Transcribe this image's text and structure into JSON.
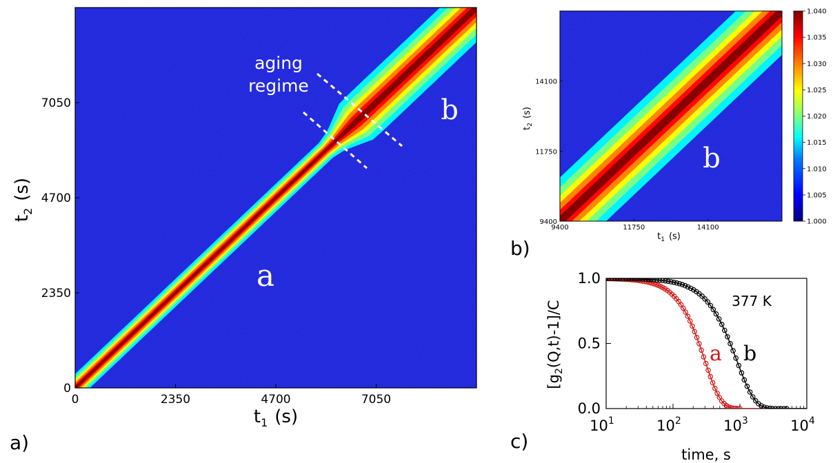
{
  "panel_labels": {
    "a": "a)",
    "b": "b)",
    "c": "c)"
  },
  "chart_data": [
    {
      "id": "panel_a",
      "type": "heatmap",
      "title": "",
      "xlabel": "t",
      "xlabel_sub": "1",
      "xlabel_unit": "(s)",
      "ylabel": "t",
      "ylabel_sub": "2",
      "ylabel_unit": "(s)",
      "xlim": [
        0,
        9400
      ],
      "ylim": [
        0,
        9400
      ],
      "xticks": [
        "0",
        "2350",
        "4700",
        "7050"
      ],
      "yticks": [
        "0",
        "2350",
        "4700",
        "7050"
      ],
      "tick_values": [
        0,
        2350,
        4700,
        7050
      ],
      "diagonal_width_start": 170,
      "diagonal_width_end": 420,
      "crossover_t": 6000,
      "annotations": {
        "aging_line1": "aging",
        "aging_line2": "regime",
        "label_a": "a",
        "label_b": "b"
      },
      "colorscale": [
        "#00007f",
        "#0000ff",
        "#0080ff",
        "#00ffff",
        "#80ff80",
        "#ffff00",
        "#ff8000",
        "#ff0000",
        "#7f0000"
      ]
    },
    {
      "id": "panel_b",
      "type": "heatmap",
      "xlabel": "t",
      "xlabel_sub": "1",
      "xlabel_unit": "(s)",
      "ylabel": "t",
      "ylabel_sub": "2",
      "ylabel_unit": "(s)",
      "xlim": [
        9400,
        16450
      ],
      "ylim": [
        9400,
        16450
      ],
      "xticks": [
        "9400",
        "11750",
        "14100"
      ],
      "yticks": [
        "9400",
        "11750",
        "14100"
      ],
      "tick_values": [
        9400,
        11750,
        14100
      ],
      "diagonal_width": 420,
      "annotation": "b",
      "colorbar": {
        "min": 1.0,
        "max": 1.04,
        "ticks": [
          "1.000",
          "1.005",
          "1.010",
          "1.015",
          "1.020",
          "1.025",
          "1.030",
          "1.035",
          "1.040"
        ]
      }
    },
    {
      "id": "panel_c",
      "type": "scatter",
      "xlabel": "time, s",
      "ylabel": "[g",
      "ylabel_sub": "2",
      "ylabel_rest": "(Q,t)-1]/C",
      "xscale": "log",
      "xlim": [
        10,
        10000
      ],
      "ylim": [
        0,
        1.0
      ],
      "xticks": [
        {
          "base": "10",
          "exp": "1"
        },
        {
          "base": "10",
          "exp": "2"
        },
        {
          "base": "10",
          "exp": "3"
        },
        {
          "base": "10",
          "exp": "4"
        }
      ],
      "yticks": [
        "0.0",
        "0.5",
        "1.0"
      ],
      "ytick_values": [
        0,
        0.5,
        1.0
      ],
      "annotation": "377 K",
      "series": [
        {
          "name": "a",
          "color": "#d01818",
          "tau": 300,
          "beta": 1.8,
          "xmin": 10,
          "xmax": 1000,
          "npts": 60
        },
        {
          "name": "b",
          "color": "#000000",
          "tau": 900,
          "beta": 1.6,
          "xmin": 10,
          "xmax": 5000,
          "npts": 65
        }
      ]
    }
  ]
}
